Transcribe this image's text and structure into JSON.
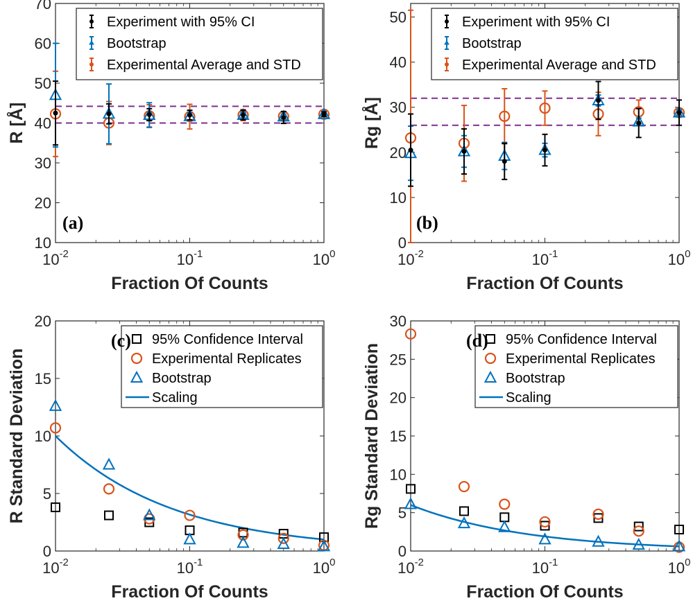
{
  "colors": {
    "experiment": "#000000",
    "bootstrap": "#0072BD",
    "average": "#D95319",
    "dashed": "#7E2F8E",
    "scaling": "#0072BD"
  },
  "chart_data": [
    {
      "panel": "(a)",
      "type": "scatter",
      "xscale": "log",
      "xlim": [
        0.01,
        1
      ],
      "ylim": [
        10,
        70
      ],
      "yticks": [
        10,
        20,
        30,
        40,
        50,
        60,
        70
      ],
      "xlabel": "Fraction Of Counts",
      "ylabel": "R [Å]",
      "legend_position": "top-right",
      "hlines": [
        40.0,
        44.2
      ],
      "x": [
        0.01,
        0.025,
        0.05,
        0.1,
        0.25,
        0.5,
        1
      ],
      "series": [
        {
          "name": "Experiment with 95% CI",
          "marker": "dot",
          "values": [
            42.5,
            42.3,
            42.1,
            42.0,
            42.0,
            41.4,
            42.2
          ],
          "errors": [
            8.0,
            2.5,
            1.5,
            1.2,
            1.2,
            1.5,
            0.6
          ]
        },
        {
          "name": "Bootstrap",
          "marker": "triangle",
          "values": [
            47.0,
            42.3,
            42.0,
            41.7,
            42.0,
            41.6,
            42.2
          ],
          "errors": [
            13.0,
            7.5,
            3.1,
            1.0,
            0.7,
            0.6,
            0.4
          ]
        },
        {
          "name": "Experimental Average and STD",
          "marker": "circle",
          "values": [
            42.3,
            40.0,
            41.8,
            41.6,
            42.0,
            41.7,
            42.2
          ],
          "errors": [
            10.7,
            5.4,
            2.8,
            3.1,
            1.4,
            1.1,
            0.5
          ]
        }
      ]
    },
    {
      "panel": "(b)",
      "type": "scatter",
      "xscale": "log",
      "xlim": [
        0.01,
        1
      ],
      "ylim": [
        0,
        53
      ],
      "yticks": [
        0,
        10,
        20,
        30,
        40,
        50
      ],
      "xlabel": "Fraction Of Counts",
      "ylabel": "Rg [Å]",
      "legend_position": "top-right",
      "hlines": [
        26.0,
        32.0
      ],
      "x": [
        0.01,
        0.025,
        0.05,
        0.1,
        0.25,
        0.5,
        1
      ],
      "series": [
        {
          "name": "Experiment with 95% CI",
          "marker": "dot",
          "values": [
            20.5,
            20.2,
            18.0,
            20.5,
            31.5,
            26.5,
            28.8
          ],
          "errors": [
            8.0,
            5.0,
            4.0,
            3.5,
            4.2,
            3.2,
            2.8
          ]
        },
        {
          "name": "Bootstrap",
          "marker": "triangle",
          "values": [
            19.8,
            20.2,
            19.2,
            20.5,
            31.5,
            26.8,
            28.8
          ],
          "errors": [
            6.0,
            3.5,
            3.0,
            1.5,
            1.2,
            0.8,
            0.6
          ]
        },
        {
          "name": "Experimental Average and STD",
          "marker": "circle",
          "values": [
            23.2,
            22.0,
            28.0,
            29.8,
            28.5,
            29.0,
            28.8
          ],
          "errors": [
            28.3,
            8.4,
            6.1,
            3.8,
            4.8,
            2.6,
            0.5
          ]
        }
      ]
    },
    {
      "panel": "(c)",
      "type": "scatter",
      "xscale": "log",
      "xlim": [
        0.01,
        1
      ],
      "ylim": [
        0,
        20
      ],
      "yticks": [
        0,
        5,
        10,
        15,
        20
      ],
      "xlabel": "Fraction Of Counts",
      "ylabel": "R Standard Deviation",
      "legend_position": "top-right",
      "x": [
        0.01,
        0.025,
        0.05,
        0.1,
        0.25,
        0.5,
        1
      ],
      "series": [
        {
          "name": "95% Confidence Interval",
          "marker": "square",
          "values": [
            3.8,
            3.1,
            2.5,
            1.8,
            1.6,
            1.5,
            1.2
          ]
        },
        {
          "name": "Experimental Replicates",
          "marker": "circle",
          "values": [
            10.7,
            5.4,
            2.8,
            3.1,
            1.4,
            1.1,
            0.5
          ]
        },
        {
          "name": "Bootstrap",
          "marker": "triangle",
          "values": [
            12.6,
            7.5,
            3.1,
            1.0,
            0.7,
            0.6,
            0.4
          ]
        }
      ],
      "scaling": {
        "name": "Scaling",
        "amplitude_at_1": 1.0,
        "exponent": -0.5
      }
    },
    {
      "panel": "(d)",
      "type": "scatter",
      "xscale": "log",
      "xlim": [
        0.01,
        1
      ],
      "ylim": [
        0,
        30
      ],
      "yticks": [
        0,
        5,
        10,
        15,
        20,
        25,
        30
      ],
      "xlabel": "Fraction Of Counts",
      "ylabel": "Rg Standard Deviation",
      "legend_position": "top-right",
      "x": [
        0.01,
        0.025,
        0.05,
        0.1,
        0.25,
        0.5,
        1
      ],
      "series": [
        {
          "name": "95% Confidence Interval",
          "marker": "square",
          "values": [
            8.1,
            5.2,
            4.4,
            3.3,
            4.3,
            3.2,
            2.8
          ]
        },
        {
          "name": "Experimental Replicates",
          "marker": "circle",
          "values": [
            28.3,
            8.4,
            6.1,
            3.8,
            4.8,
            2.6,
            0.5
          ]
        },
        {
          "name": "Bootstrap",
          "marker": "triangle",
          "values": [
            6.1,
            3.6,
            3.1,
            1.5,
            1.2,
            0.8,
            0.6
          ]
        }
      ],
      "scaling": {
        "name": "Scaling",
        "amplitude_at_1": 0.6,
        "exponent": -0.5
      }
    }
  ]
}
